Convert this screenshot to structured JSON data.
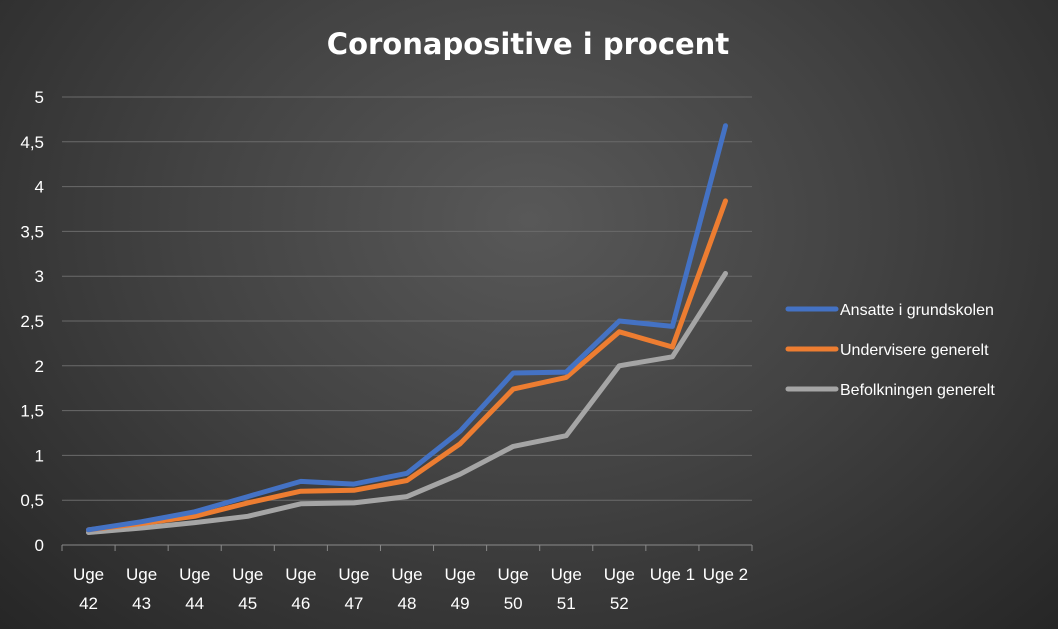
{
  "chart_data": {
    "type": "line",
    "title": "Coronapositive  i procent",
    "xlabel": "",
    "ylabel": "",
    "categories": [
      [
        "Uge",
        "42"
      ],
      [
        "Uge",
        "43"
      ],
      [
        "Uge",
        "44"
      ],
      [
        "Uge",
        "45"
      ],
      [
        "Uge",
        "46"
      ],
      [
        "Uge",
        "47"
      ],
      [
        "Uge",
        "48"
      ],
      [
        "Uge",
        "49"
      ],
      [
        "Uge",
        "50"
      ],
      [
        "Uge",
        "51"
      ],
      [
        "Uge",
        "52"
      ],
      [
        "Uge 1"
      ],
      [
        "Uge 2"
      ]
    ],
    "ylim": [
      0,
      5
    ],
    "yticks": [
      "0",
      "0,5",
      "1",
      "1,5",
      "2",
      "2,5",
      "3",
      "3,5",
      "4",
      "4,5",
      "5"
    ],
    "grid": true,
    "legend_position": "right",
    "series": [
      {
        "name": "Ansatte i grundskolen",
        "color": "#4472C4",
        "values": [
          0.17,
          0.26,
          0.37,
          0.54,
          0.71,
          0.68,
          0.8,
          1.27,
          1.92,
          1.93,
          2.5,
          2.44,
          4.68
        ]
      },
      {
        "name": "Undervisere generelt",
        "color": "#ED7D31",
        "values": [
          0.17,
          0.24,
          0.32,
          0.47,
          0.6,
          0.61,
          0.72,
          1.13,
          1.74,
          1.87,
          2.38,
          2.21,
          3.84
        ]
      },
      {
        "name": "Befolkningen generelt",
        "color": "#A5A5A5",
        "values": [
          0.14,
          0.19,
          0.25,
          0.32,
          0.46,
          0.47,
          0.54,
          0.79,
          1.1,
          1.22,
          2.0,
          2.1,
          3.03
        ]
      }
    ]
  }
}
